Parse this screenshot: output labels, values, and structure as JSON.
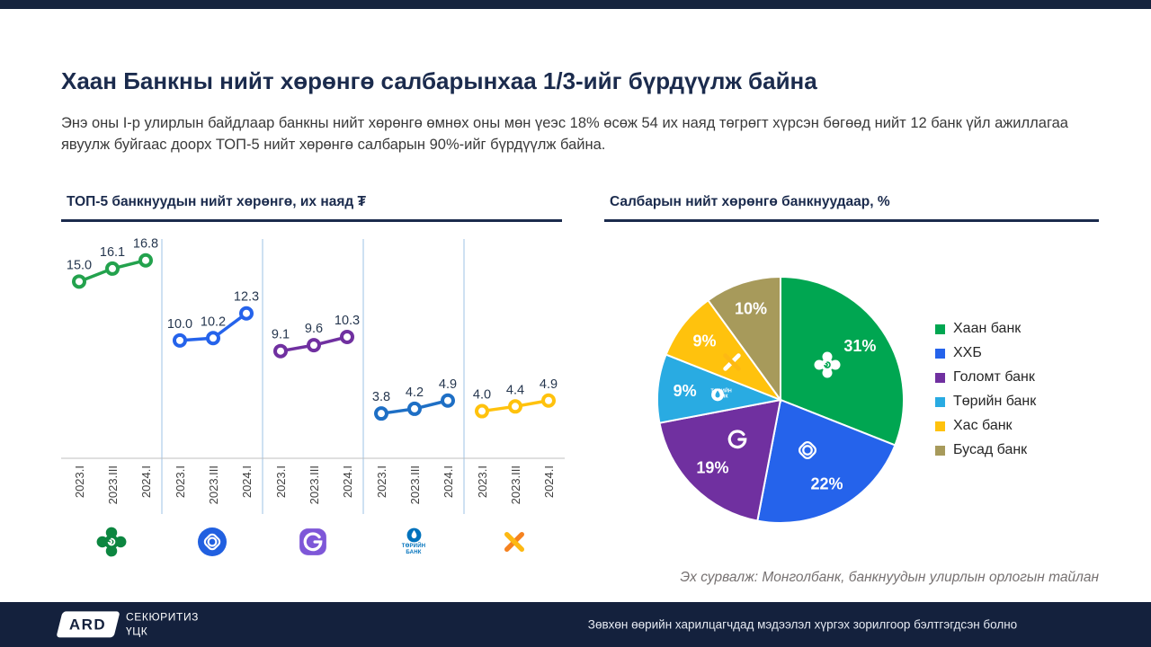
{
  "page": {
    "title": "Хаан Банкны нийт хөрөнгө салбарынхаа 1/3-ийг бүрдүүлж байна",
    "subtitle": "Энэ оны I-р улирлын байдлаар банкны нийт хөрөнгө өмнөх оны мөн үеэс 18% өсөж 54 их наяд төгрөгт хүрсэн бөгөөд нийт 12 банк үйл ажиллагаа явуулж буйгаас доорх ТОП-5 нийт хөрөнгө салбарын 90%-ийг бүрдүүлж байна."
  },
  "charts": {
    "line_title": "ТОП-5 банкнуудын нийт хөрөнгө, их наяд ₮",
    "pie_title": "Салбарын нийт хөрөнгө банкнуудаар, %"
  },
  "source_note": "Эх сурвалж: Монголбанк, банкнуудын улирлын орлогын тайлан",
  "footer": {
    "brand": "ARD",
    "brand_sub_line1": "СЕКЮРИТИЗ",
    "brand_sub_line2": "ҮЦК",
    "disclaimer": "Зөвхөн өөрийн харилцагчдад мэдээлэл хүргэх зорилгоор бэлтгэгдсэн болно"
  },
  "logo_text": {
    "state_line1": "ТӨРИЙН",
    "state_line2": "БАНК"
  },
  "colors": {
    "accent_navy": "#1B2B4D",
    "separator_blue": "#9DC3E6",
    "axis_gray": "#BFBFBF",
    "source_gray": "#767171"
  },
  "chart_data": [
    {
      "type": "line",
      "title": "ТОП-5 банкнуудын нийт хөрөнгө, их наяд ₮",
      "x_labels": [
        "2023.I",
        "2023.III",
        "2024.I"
      ],
      "series": [
        {
          "name": "Хаан банк",
          "logo": "khan",
          "color": "#23A24D",
          "values": [
            15.0,
            16.1,
            16.8
          ]
        },
        {
          "name": "ХХБ",
          "logo": "tdb",
          "color": "#2563EB",
          "values": [
            10.0,
            10.2,
            12.3
          ]
        },
        {
          "name": "Голомт банк",
          "logo": "golomt",
          "color": "#7030A0",
          "values": [
            9.1,
            9.6,
            10.3
          ]
        },
        {
          "name": "Төрийн банк",
          "logo": "state",
          "color": "#1E6FC5",
          "values": [
            3.8,
            4.2,
            4.9
          ]
        },
        {
          "name": "Хас банк",
          "logo": "xac",
          "color": "#FFC20D",
          "values": [
            4.0,
            4.4,
            4.9
          ]
        }
      ],
      "ylim": [
        0,
        18
      ],
      "grid": false,
      "unit": "их наяд ₮"
    },
    {
      "type": "pie",
      "title": "Салбарын нийт хөрөнгө банкнуудаар, %",
      "labels": [
        "Хаан банк",
        "ХХБ",
        "Голомт банк",
        "Төрийн банк",
        "Хас банк",
        "Бусад банк"
      ],
      "values": [
        31,
        22,
        19,
        9,
        9,
        10
      ],
      "colors": [
        "#00A651",
        "#2563EB",
        "#7030A0",
        "#29ABE2",
        "#FFC20D",
        "#A79A5B"
      ],
      "logo_keys": [
        "khan",
        "tdb",
        "golomt",
        "state",
        "xac",
        null
      ],
      "legend_position": "right",
      "start_angle": "top",
      "direction": "clockwise"
    }
  ]
}
